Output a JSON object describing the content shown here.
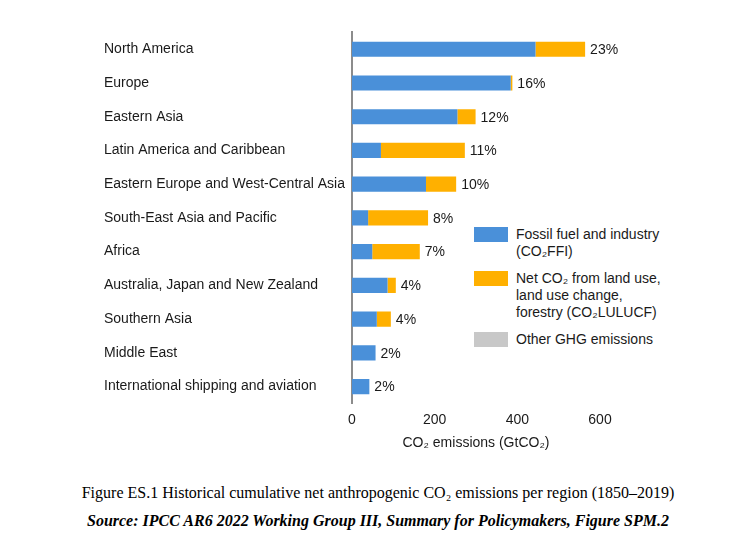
{
  "chart_data": {
    "type": "bar",
    "orientation": "horizontal",
    "stacked": true,
    "title": "Figure ES.1 Historical cumulative net anthropogenic CO₂ emissions per region (1850–2019)",
    "subtitle": "Source: IPCC AR6 2022 Working Group III, Summary for Policymakers, Figure SPM.2",
    "x_label": "CO₂ emissions (GtCO₂)",
    "categories": [
      "North America",
      "Europe",
      "Eastern Asia",
      "Latin America and Caribbean",
      "Eastern Europe and West-Central Asia",
      "South-East Asia and Pacific",
      "Africa",
      "Australia, Japan and New Zealand",
      "Southern Asia",
      "Middle East",
      "International shipping and aviation"
    ],
    "series": [
      {
        "name": "Fossil fuel and industry (CO₂FFI)",
        "color": "#4a90d9",
        "values": [
          444,
          384,
          255,
          70,
          179,
          39,
          49,
          86,
          60,
          57,
          42
        ]
      },
      {
        "name": "Net CO₂ from land use, land use change, forestry (CO₂LULUCF)",
        "color": "#ffb000",
        "values": [
          120,
          4,
          44,
          203,
          73,
          145,
          115,
          20,
          34,
          0,
          0
        ]
      },
      {
        "name": "Other GHG emissions",
        "color": "#c8c8c8",
        "values": [
          null,
          null,
          null,
          null,
          null,
          null,
          null,
          null,
          null,
          null,
          null
        ]
      }
    ],
    "annotations": [
      "23%",
      "16%",
      "12%",
      "11%",
      "10%",
      "8%",
      "7%",
      "4%",
      "4%",
      "2%",
      "2%"
    ],
    "xlim": [
      0,
      600
    ],
    "xticks": [
      0,
      200,
      400,
      600
    ],
    "grid": false,
    "legend": "right"
  }
}
